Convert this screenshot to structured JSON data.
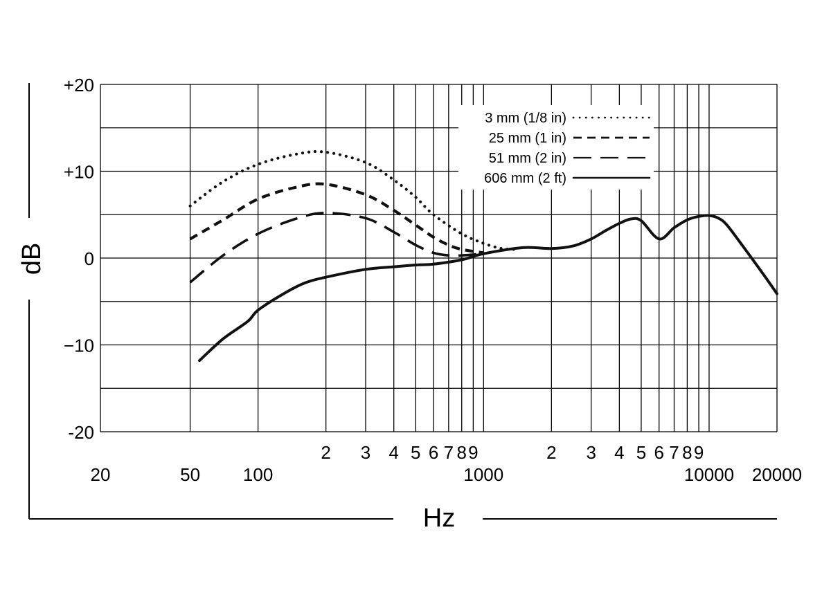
{
  "chart_data": {
    "type": "line",
    "xlabel": "Hz",
    "ylabel": "dB",
    "xscale": "log",
    "xlim": [
      20,
      20000
    ],
    "ylim": [
      -20,
      20
    ],
    "grid": true,
    "legend_position": "top-right",
    "x_gridlines": [
      20,
      50,
      100,
      200,
      300,
      400,
      500,
      600,
      700,
      800,
      900,
      1000,
      2000,
      3000,
      4000,
      5000,
      6000,
      7000,
      8000,
      9000,
      10000,
      20000
    ],
    "y_gridlines": [
      -20,
      -15,
      -10,
      -5,
      0,
      5,
      10,
      15,
      20
    ],
    "x_tick_labels_upper": [
      {
        "value": 200,
        "label": "2"
      },
      {
        "value": 300,
        "label": "3"
      },
      {
        "value": 400,
        "label": "4"
      },
      {
        "value": 500,
        "label": "5"
      },
      {
        "value": 600,
        "label": "6"
      },
      {
        "value": 700,
        "label": "7"
      },
      {
        "value": 800,
        "label": "8"
      },
      {
        "value": 900,
        "label": "9"
      },
      {
        "value": 2000,
        "label": "2"
      },
      {
        "value": 3000,
        "label": "3"
      },
      {
        "value": 4000,
        "label": "4"
      },
      {
        "value": 5000,
        "label": "5"
      },
      {
        "value": 6000,
        "label": "6"
      },
      {
        "value": 7000,
        "label": "7"
      },
      {
        "value": 8000,
        "label": "8"
      },
      {
        "value": 9000,
        "label": "9"
      }
    ],
    "x_tick_labels_lower": [
      {
        "value": 20,
        "label": "20"
      },
      {
        "value": 50,
        "label": "50"
      },
      {
        "value": 100,
        "label": "100"
      },
      {
        "value": 1000,
        "label": "1000"
      },
      {
        "value": 10000,
        "label": "10000"
      },
      {
        "value": 20000,
        "label": "20000"
      }
    ],
    "y_tick_labels": [
      {
        "value": 20,
        "label": "+20"
      },
      {
        "value": 10,
        "label": "+10"
      },
      {
        "value": 0,
        "label": "0"
      },
      {
        "value": -10,
        "label": "−10"
      },
      {
        "value": -20,
        "label": "-20"
      }
    ],
    "series": [
      {
        "name": "3 mm (1/8 in)",
        "dash": "dotted",
        "x": [
          50,
          70,
          100,
          150,
          200,
          300,
          400,
          500,
          600,
          800,
          1000,
          1200,
          1400
        ],
        "y": [
          6,
          8.8,
          10.8,
          12.0,
          12.2,
          11.0,
          9.0,
          7.0,
          5.0,
          2.8,
          1.7,
          1.1,
          1.0
        ]
      },
      {
        "name": "25 mm (1 in)",
        "dash": "short-dash",
        "x": [
          50,
          70,
          100,
          150,
          200,
          300,
          400,
          500,
          600,
          700,
          800,
          1000
        ],
        "y": [
          2.2,
          4.4,
          6.8,
          8.2,
          8.5,
          7.3,
          5.5,
          3.8,
          2.4,
          1.5,
          1.0,
          0.6
        ]
      },
      {
        "name": "51 mm (2 in)",
        "dash": "long-dash",
        "x": [
          50,
          70,
          100,
          150,
          200,
          300,
          400,
          500,
          600,
          700,
          800,
          1000
        ],
        "y": [
          -2.8,
          0.3,
          2.8,
          4.6,
          5.2,
          4.6,
          3.0,
          1.5,
          0.6,
          0.3,
          0.3,
          0.5
        ]
      },
      {
        "name": "606 mm (2 ft)",
        "dash": "solid",
        "x": [
          55,
          70,
          90,
          100,
          130,
          160,
          200,
          300,
          400,
          500,
          600,
          800,
          1000,
          1500,
          2000,
          2500,
          3000,
          3500,
          4000,
          4500,
          5000,
          6000,
          7000,
          8000,
          9000,
          10000,
          11000,
          12000,
          14000,
          17000,
          20000
        ],
        "y": [
          -11.8,
          -9.3,
          -7.3,
          -6.0,
          -4.1,
          -2.9,
          -2.2,
          -1.3,
          -1.0,
          -0.8,
          -0.7,
          -0.2,
          0.5,
          1.2,
          1.1,
          1.4,
          2.2,
          3.2,
          4.0,
          4.5,
          4.3,
          2.2,
          3.5,
          4.4,
          4.8,
          4.9,
          4.6,
          3.8,
          1.5,
          -1.5,
          -4.1
        ]
      }
    ]
  }
}
